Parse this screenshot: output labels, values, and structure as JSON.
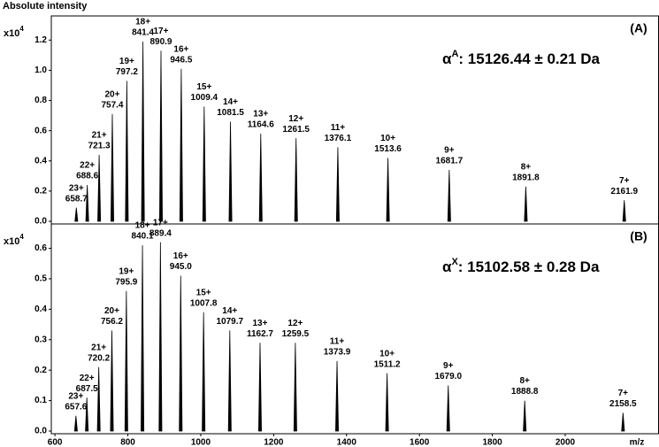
{
  "chart_data": [
    {
      "type": "stem",
      "ylabel": "Absolute intensity",
      "y_multiplier": "x10",
      "y_exponent": "4",
      "title": "(A)",
      "annotation": {
        "symbol": "α",
        "superscript": "A",
        "text": ": 15126.44 ± 0.21 Da"
      },
      "charges": [
        "23+",
        "22+",
        "21+",
        "20+",
        "19+",
        "18+",
        "17+",
        "16+",
        "15+",
        "14+",
        "13+",
        "12+",
        "11+",
        "10+",
        "9+",
        "8+",
        "7+"
      ],
      "x": [
        658.7,
        688.6,
        721.3,
        757.4,
        797.2,
        841.4,
        890.9,
        946.5,
        1009.4,
        1081.5,
        1164.6,
        1261.5,
        1376.1,
        1513.6,
        1681.7,
        1891.8,
        2161.9
      ],
      "x_labels": [
        "658.7",
        "688.6",
        "721.3",
        "757.4",
        "797.2",
        "841.4",
        "890.9",
        "946.5",
        "1009.4",
        "1081.5",
        "1164.6",
        "1261.5",
        "1376.1",
        "1513.6",
        "1681.7",
        "1891.8",
        "2161.9"
      ],
      "values": [
        0.09,
        0.24,
        0.44,
        0.71,
        0.93,
        1.19,
        1.13,
        1.01,
        0.76,
        0.66,
        0.58,
        0.55,
        0.49,
        0.42,
        0.34,
        0.23,
        0.14
      ],
      "color": "#000000",
      "xlim": [
        590,
        2256
      ],
      "ylim": [
        0,
        1.36
      ],
      "yticks": [
        {
          "value": 0,
          "label": "0.0"
        },
        0.2,
        0.4,
        0.6,
        0.8,
        {
          "value": 1,
          "label": "1.0"
        },
        1.2
      ]
    },
    {
      "type": "stem",
      "y_multiplier": "x10",
      "y_exponent": "4",
      "title": "(B)",
      "annotation": {
        "symbol": "α",
        "superscript": "X",
        "text": ": 15102.58 ± 0.28 Da"
      },
      "charges": [
        "23+",
        "22+",
        "21+",
        "20+",
        "19+",
        "18+",
        "17+",
        "16+",
        "15+",
        "14+",
        "13+",
        "12+",
        "11+",
        "10+",
        "9+",
        "8+",
        "7+"
      ],
      "x": [
        657.6,
        687.5,
        720.2,
        756.2,
        795.9,
        840.1,
        889.4,
        945.0,
        1007.8,
        1079.7,
        1162.7,
        1259.5,
        1373.9,
        1511.2,
        1679.0,
        1888.8,
        2158.5
      ],
      "x_labels": [
        "657.6",
        "687.5",
        "720.2",
        "756.2",
        "795.9",
        "840.1",
        "889.4",
        "945.0",
        "1007.8",
        "1079.7",
        "1162.7",
        "1259.5",
        "1373.9",
        "1511.2",
        "1679.0",
        "1888.8",
        "2158.5"
      ],
      "values": [
        0.05,
        0.11,
        0.21,
        0.33,
        0.46,
        0.61,
        0.62,
        0.51,
        0.39,
        0.33,
        0.29,
        0.29,
        0.23,
        0.19,
        0.15,
        0.1,
        0.06
      ],
      "color": "#000000",
      "xlim": [
        590,
        2256
      ],
      "ylim": [
        0,
        0.68
      ],
      "yticks": [
        {
          "value": 0,
          "label": "0.0"
        },
        0.1,
        0.2,
        0.3,
        0.4,
        0.5,
        0.6
      ],
      "xticks": [
        600,
        800,
        1000,
        1200,
        1400,
        1600,
        1800,
        2000
      ],
      "xlabel": "m/z"
    }
  ]
}
